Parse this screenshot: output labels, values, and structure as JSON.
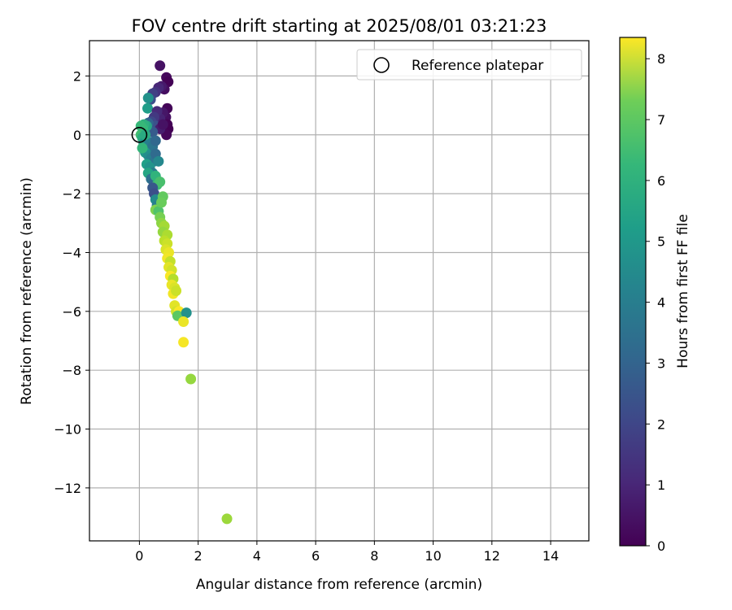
{
  "chart_data": {
    "type": "scatter",
    "title": "FOV centre drift starting at 2025/08/01 03:21:23",
    "xlabel": "Angular distance from reference (arcmin)",
    "ylabel": "Rotation from reference (arcmin)",
    "xlim": [
      -1.7,
      15.3
    ],
    "ylim": [
      -13.8,
      3.2
    ],
    "xticks": [
      0,
      2,
      4,
      6,
      8,
      10,
      12,
      14
    ],
    "yticks": [
      2,
      0,
      -2,
      -4,
      -6,
      -8,
      -10,
      -12
    ],
    "xtick_labels": [
      "0",
      "2",
      "4",
      "6",
      "8",
      "10",
      "12",
      "14"
    ],
    "ytick_labels": [
      "2",
      "0",
      "−2",
      "−4",
      "−6",
      "−8",
      "−10",
      "−12"
    ],
    "grid": true,
    "colormap": "viridis",
    "colorbar": {
      "label": "Hours from first FF file",
      "range": [
        0,
        8.35
      ],
      "ticks": [
        0,
        1,
        2,
        3,
        4,
        5,
        6,
        7,
        8
      ],
      "tick_labels": [
        "0",
        "1",
        "2",
        "3",
        "4",
        "5",
        "6",
        "7",
        "8"
      ]
    },
    "legend": {
      "placement": "top-right",
      "label": "Reference platepar"
    },
    "reference_point": {
      "x": 0,
      "y": 0
    },
    "points": [
      {
        "x": 0.7,
        "y": 2.35,
        "h": 0.4
      },
      {
        "x": 0.92,
        "y": 1.95,
        "h": 0.2
      },
      {
        "x": 0.98,
        "y": 1.8,
        "h": 0.05
      },
      {
        "x": 0.85,
        "y": 1.55,
        "h": 0.3
      },
      {
        "x": 0.75,
        "y": 1.65,
        "h": 0.6
      },
      {
        "x": 0.65,
        "y": 1.6,
        "h": 0.9
      },
      {
        "x": 0.55,
        "y": 1.45,
        "h": 1.2
      },
      {
        "x": 0.45,
        "y": 1.4,
        "h": 1.6
      },
      {
        "x": 0.38,
        "y": 1.2,
        "h": 2.0
      },
      {
        "x": 0.3,
        "y": 1.25,
        "h": 4.2
      },
      {
        "x": 0.28,
        "y": 0.9,
        "h": 4.6
      },
      {
        "x": 0.95,
        "y": 0.9,
        "h": 0.1
      },
      {
        "x": 0.9,
        "y": 0.6,
        "h": 0.3
      },
      {
        "x": 0.95,
        "y": 0.35,
        "h": 0.05
      },
      {
        "x": 0.98,
        "y": 0.2,
        "h": 0.0
      },
      {
        "x": 0.92,
        "y": 0.0,
        "h": 0.15
      },
      {
        "x": 0.8,
        "y": 0.75,
        "h": 0.5
      },
      {
        "x": 0.7,
        "y": 0.55,
        "h": 0.8
      },
      {
        "x": 0.6,
        "y": 0.8,
        "h": 1.0
      },
      {
        "x": 0.5,
        "y": 0.6,
        "h": 1.4
      },
      {
        "x": 0.4,
        "y": 0.45,
        "h": 1.8
      },
      {
        "x": 0.55,
        "y": 0.3,
        "h": 2.1
      },
      {
        "x": 0.7,
        "y": 0.2,
        "h": 0.7
      },
      {
        "x": 0.8,
        "y": 0.35,
        "h": 0.4
      },
      {
        "x": 0.45,
        "y": 0.1,
        "h": 2.4
      },
      {
        "x": 0.3,
        "y": 0.4,
        "h": 2.7
      },
      {
        "x": 0.25,
        "y": 0.3,
        "h": 5.0
      },
      {
        "x": 0.15,
        "y": 0.35,
        "h": 5.3
      },
      {
        "x": 0.12,
        "y": 0.2,
        "h": 5.6
      },
      {
        "x": 0.05,
        "y": 0.0,
        "h": 5.8
      },
      {
        "x": 0.1,
        "y": -0.1,
        "h": 5.2
      },
      {
        "x": 0.2,
        "y": -0.2,
        "h": 4.8
      },
      {
        "x": 0.15,
        "y": -0.3,
        "h": 4.4
      },
      {
        "x": 0.25,
        "y": -0.4,
        "h": 4.0
      },
      {
        "x": 0.35,
        "y": -0.25,
        "h": 3.6
      },
      {
        "x": 0.45,
        "y": -0.4,
        "h": 3.2
      },
      {
        "x": 0.55,
        "y": -0.2,
        "h": 2.8
      },
      {
        "x": 0.2,
        "y": -0.6,
        "h": 4.5
      },
      {
        "x": 0.3,
        "y": -0.7,
        "h": 4.1
      },
      {
        "x": 0.4,
        "y": -0.8,
        "h": 3.7
      },
      {
        "x": 0.5,
        "y": -0.9,
        "h": 3.3
      },
      {
        "x": 0.55,
        "y": -0.65,
        "h": 2.9
      },
      {
        "x": 0.65,
        "y": -0.9,
        "h": 3.9
      },
      {
        "x": 0.25,
        "y": -1.0,
        "h": 4.7
      },
      {
        "x": 0.35,
        "y": -1.1,
        "h": 4.3
      },
      {
        "x": 0.45,
        "y": -1.3,
        "h": 3.5
      },
      {
        "x": 0.3,
        "y": -1.3,
        "h": 4.9
      },
      {
        "x": 0.4,
        "y": -1.5,
        "h": 3.1
      },
      {
        "x": 0.5,
        "y": -1.6,
        "h": 2.7
      },
      {
        "x": 0.55,
        "y": -1.4,
        "h": 5.4
      },
      {
        "x": 0.6,
        "y": -1.7,
        "h": 5.7
      },
      {
        "x": 0.7,
        "y": -1.6,
        "h": 5.9
      },
      {
        "x": 0.45,
        "y": -1.8,
        "h": 2.3
      },
      {
        "x": 0.5,
        "y": -2.0,
        "h": 2.0
      },
      {
        "x": 0.55,
        "y": -2.2,
        "h": 4.0
      },
      {
        "x": 0.8,
        "y": -2.1,
        "h": 6.3
      },
      {
        "x": 0.6,
        "y": -2.4,
        "h": 3.6
      },
      {
        "x": 0.55,
        "y": -2.55,
        "h": 6.7
      },
      {
        "x": 0.65,
        "y": -2.6,
        "h": 6.0
      },
      {
        "x": 0.75,
        "y": -2.3,
        "h": 6.4
      },
      {
        "x": 0.7,
        "y": -2.8,
        "h": 6.6
      },
      {
        "x": 0.75,
        "y": -3.0,
        "h": 6.9
      },
      {
        "x": 0.85,
        "y": -3.1,
        "h": 7.2
      },
      {
        "x": 0.8,
        "y": -3.3,
        "h": 7.0
      },
      {
        "x": 0.95,
        "y": -3.4,
        "h": 7.3
      },
      {
        "x": 0.85,
        "y": -3.6,
        "h": 7.5
      },
      {
        "x": 0.95,
        "y": -3.7,
        "h": 7.7
      },
      {
        "x": 0.9,
        "y": -3.9,
        "h": 7.9
      },
      {
        "x": 1.0,
        "y": -4.0,
        "h": 8.1
      },
      {
        "x": 0.95,
        "y": -4.2,
        "h": 8.2
      },
      {
        "x": 1.05,
        "y": -4.3,
        "h": 7.6
      },
      {
        "x": 1.0,
        "y": -4.5,
        "h": 8.0
      },
      {
        "x": 1.1,
        "y": -4.6,
        "h": 7.8
      },
      {
        "x": 1.05,
        "y": -4.8,
        "h": 8.3
      },
      {
        "x": 1.15,
        "y": -4.9,
        "h": 7.4
      },
      {
        "x": 1.1,
        "y": -5.1,
        "h": 8.1
      },
      {
        "x": 1.2,
        "y": -5.2,
        "h": 7.9
      },
      {
        "x": 1.15,
        "y": -5.4,
        "h": 8.2
      },
      {
        "x": 1.25,
        "y": -5.3,
        "h": 7.7
      },
      {
        "x": 1.2,
        "y": -5.8,
        "h": 8.0
      },
      {
        "x": 1.25,
        "y": -6.0,
        "h": 7.8
      },
      {
        "x": 1.35,
        "y": -6.0,
        "h": 8.3
      },
      {
        "x": 1.3,
        "y": -6.15,
        "h": 6.2
      },
      {
        "x": 1.6,
        "y": -6.05,
        "h": 4.2
      },
      {
        "x": 1.5,
        "y": -6.35,
        "h": 8.1
      },
      {
        "x": 1.5,
        "y": -7.05,
        "h": 8.25
      },
      {
        "x": 1.75,
        "y": -8.3,
        "h": 7.0
      },
      {
        "x": 2.98,
        "y": -13.05,
        "h": 7.1
      },
      {
        "x": 0.05,
        "y": 0.3,
        "h": 5.6
      },
      {
        "x": 0.1,
        "y": -0.45,
        "h": 5.5
      },
      {
        "x": 0.2,
        "y": 0.0,
        "h": 5.1
      }
    ]
  }
}
